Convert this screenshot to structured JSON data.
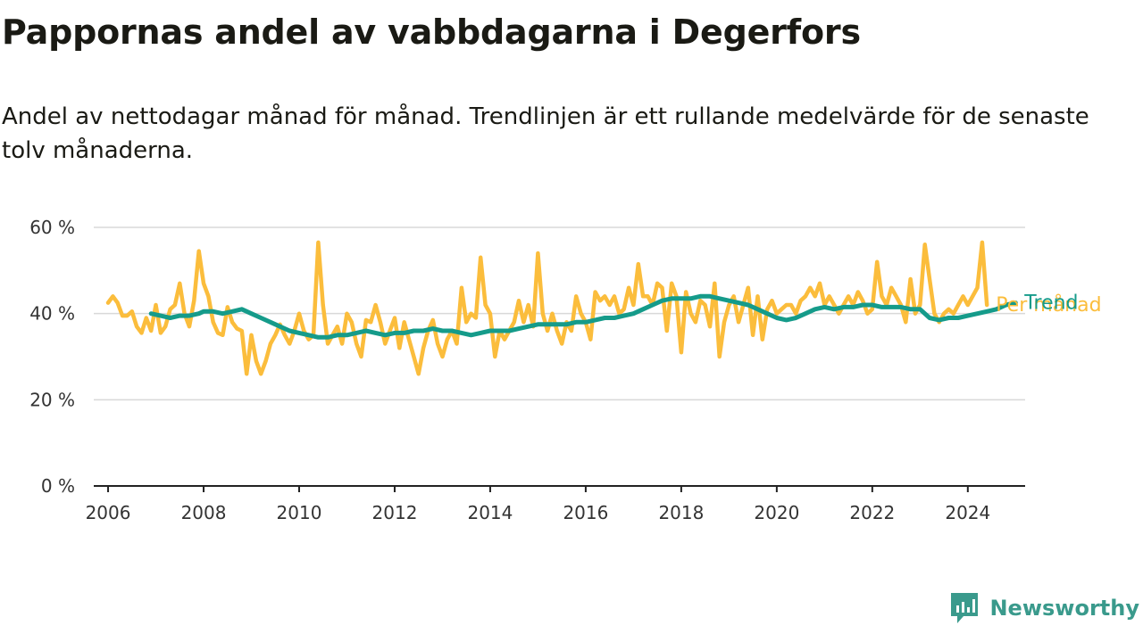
{
  "title": "Pappornas andel av vabbdagarna i Degerfors",
  "subtitle": "Andel av nettodagar månad för månad. Trendlinjen är ett rullande medelvärde för de senaste tolv månaderna.",
  "brand": {
    "name": "Newsworthy",
    "icon": "newsworthy-logo-icon",
    "color": "#3a9a8c"
  },
  "chart_data": {
    "type": "line",
    "ylim": [
      0,
      60
    ],
    "yticks": [
      "0 %",
      "20 %",
      "40 %",
      "60 %"
    ],
    "ytick_values": [
      0,
      20,
      40,
      60
    ],
    "xlim": [
      2005.7,
      2025.2
    ],
    "xticks": [
      "2006",
      "2008",
      "2010",
      "2012",
      "2014",
      "2016",
      "2018",
      "2020",
      "2022",
      "2024"
    ],
    "xtick_values": [
      2006,
      2008,
      2010,
      2012,
      2014,
      2016,
      2018,
      2020,
      2022,
      2024
    ],
    "grid": true,
    "series": [
      {
        "name": "Per månad",
        "color": "#fbbd3c",
        "points": [
          [
            2006.0,
            42.5
          ],
          [
            2006.1,
            44
          ],
          [
            2006.2,
            42.5
          ],
          [
            2006.3,
            39.5
          ],
          [
            2006.4,
            39.5
          ],
          [
            2006.5,
            40.5
          ],
          [
            2006.6,
            37
          ],
          [
            2006.7,
            35.5
          ],
          [
            2006.8,
            39
          ],
          [
            2006.9,
            36
          ],
          [
            2007.0,
            42
          ],
          [
            2007.1,
            35.5
          ],
          [
            2007.2,
            37
          ],
          [
            2007.3,
            41
          ],
          [
            2007.4,
            42
          ],
          [
            2007.5,
            47
          ],
          [
            2007.6,
            40
          ],
          [
            2007.7,
            37
          ],
          [
            2007.8,
            43
          ],
          [
            2007.9,
            54.5
          ],
          [
            2008.0,
            47
          ],
          [
            2008.1,
            44
          ],
          [
            2008.2,
            38
          ],
          [
            2008.3,
            35.5
          ],
          [
            2008.4,
            35
          ],
          [
            2008.5,
            41.5
          ],
          [
            2008.6,
            38
          ],
          [
            2008.7,
            36.5
          ],
          [
            2008.8,
            36
          ],
          [
            2008.9,
            26
          ],
          [
            2009.0,
            35
          ],
          [
            2009.1,
            29
          ],
          [
            2009.2,
            26
          ],
          [
            2009.3,
            29
          ],
          [
            2009.4,
            33
          ],
          [
            2009.5,
            35
          ],
          [
            2009.6,
            37.5
          ],
          [
            2009.7,
            35
          ],
          [
            2009.8,
            33
          ],
          [
            2009.9,
            36
          ],
          [
            2010.0,
            40
          ],
          [
            2010.1,
            36
          ],
          [
            2010.2,
            34
          ],
          [
            2010.3,
            35
          ],
          [
            2010.4,
            56.5
          ],
          [
            2010.5,
            42
          ],
          [
            2010.6,
            33
          ],
          [
            2010.7,
            35
          ],
          [
            2010.8,
            37
          ],
          [
            2010.9,
            33
          ],
          [
            2011.0,
            40
          ],
          [
            2011.1,
            38
          ],
          [
            2011.2,
            33
          ],
          [
            2011.3,
            30
          ],
          [
            2011.4,
            38.5
          ],
          [
            2011.5,
            38
          ],
          [
            2011.6,
            42
          ],
          [
            2011.7,
            38
          ],
          [
            2011.8,
            33
          ],
          [
            2011.9,
            36
          ],
          [
            2012.0,
            39
          ],
          [
            2012.1,
            32
          ],
          [
            2012.2,
            38
          ],
          [
            2012.3,
            34
          ],
          [
            2012.4,
            30
          ],
          [
            2012.5,
            26
          ],
          [
            2012.6,
            32
          ],
          [
            2012.7,
            36
          ],
          [
            2012.8,
            38.5
          ],
          [
            2012.9,
            33
          ],
          [
            2013.0,
            30
          ],
          [
            2013.1,
            34
          ],
          [
            2013.2,
            36
          ],
          [
            2013.3,
            33
          ],
          [
            2013.4,
            46
          ],
          [
            2013.5,
            38
          ],
          [
            2013.6,
            40
          ],
          [
            2013.7,
            39
          ],
          [
            2013.8,
            53
          ],
          [
            2013.9,
            42
          ],
          [
            2014.0,
            40
          ],
          [
            2014.1,
            30
          ],
          [
            2014.2,
            36
          ],
          [
            2014.3,
            34
          ],
          [
            2014.4,
            36
          ],
          [
            2014.5,
            38
          ],
          [
            2014.6,
            43
          ],
          [
            2014.7,
            38
          ],
          [
            2014.8,
            42
          ],
          [
            2014.9,
            37
          ],
          [
            2015.0,
            54
          ],
          [
            2015.1,
            40
          ],
          [
            2015.2,
            36
          ],
          [
            2015.3,
            40
          ],
          [
            2015.4,
            36
          ],
          [
            2015.5,
            33
          ],
          [
            2015.6,
            38
          ],
          [
            2015.7,
            36
          ],
          [
            2015.8,
            44
          ],
          [
            2015.9,
            40
          ],
          [
            2016.0,
            38
          ],
          [
            2016.1,
            34
          ],
          [
            2016.2,
            45
          ],
          [
            2016.3,
            43
          ],
          [
            2016.4,
            44
          ],
          [
            2016.5,
            42
          ],
          [
            2016.6,
            44
          ],
          [
            2016.7,
            40
          ],
          [
            2016.8,
            41
          ],
          [
            2016.9,
            46
          ],
          [
            2017.0,
            42
          ],
          [
            2017.1,
            51.5
          ],
          [
            2017.2,
            44
          ],
          [
            2017.3,
            44
          ],
          [
            2017.4,
            42
          ],
          [
            2017.5,
            47
          ],
          [
            2017.6,
            46
          ],
          [
            2017.7,
            36
          ],
          [
            2017.8,
            47
          ],
          [
            2017.9,
            44
          ],
          [
            2018.0,
            31
          ],
          [
            2018.1,
            45
          ],
          [
            2018.2,
            40
          ],
          [
            2018.3,
            38
          ],
          [
            2018.4,
            43
          ],
          [
            2018.5,
            42
          ],
          [
            2018.6,
            37
          ],
          [
            2018.7,
            47
          ],
          [
            2018.8,
            30
          ],
          [
            2018.9,
            38
          ],
          [
            2019.0,
            42
          ],
          [
            2019.1,
            44
          ],
          [
            2019.2,
            38
          ],
          [
            2019.3,
            42
          ],
          [
            2019.4,
            46
          ],
          [
            2019.5,
            35
          ],
          [
            2019.6,
            44
          ],
          [
            2019.7,
            34
          ],
          [
            2019.8,
            41
          ],
          [
            2019.9,
            43
          ],
          [
            2020.0,
            40
          ],
          [
            2020.1,
            41
          ],
          [
            2020.2,
            42
          ],
          [
            2020.3,
            42
          ],
          [
            2020.4,
            40
          ],
          [
            2020.5,
            43
          ],
          [
            2020.6,
            44
          ],
          [
            2020.7,
            46
          ],
          [
            2020.8,
            44
          ],
          [
            2020.9,
            47
          ],
          [
            2021.0,
            42
          ],
          [
            2021.1,
            44
          ],
          [
            2021.2,
            42
          ],
          [
            2021.3,
            40
          ],
          [
            2021.4,
            42
          ],
          [
            2021.5,
            44
          ],
          [
            2021.6,
            42
          ],
          [
            2021.7,
            45
          ],
          [
            2021.8,
            43
          ],
          [
            2021.9,
            40
          ],
          [
            2022.0,
            41
          ],
          [
            2022.1,
            52
          ],
          [
            2022.2,
            44
          ],
          [
            2022.3,
            42
          ],
          [
            2022.4,
            46
          ],
          [
            2022.5,
            44
          ],
          [
            2022.6,
            42
          ],
          [
            2022.7,
            38
          ],
          [
            2022.8,
            48
          ],
          [
            2022.9,
            40
          ],
          [
            2023.0,
            42
          ],
          [
            2023.1,
            56
          ],
          [
            2023.2,
            48
          ],
          [
            2023.3,
            40
          ],
          [
            2023.4,
            38
          ],
          [
            2023.5,
            40
          ],
          [
            2023.6,
            41
          ],
          [
            2023.7,
            40
          ],
          [
            2023.8,
            42
          ],
          [
            2023.9,
            44
          ],
          [
            2024.0,
            42
          ],
          [
            2024.1,
            44
          ],
          [
            2024.2,
            46
          ],
          [
            2024.3,
            56.5
          ],
          [
            2024.4,
            42
          ]
        ]
      },
      {
        "name": "Trend",
        "color": "#159b8a",
        "points": [
          [
            2006.9,
            40
          ],
          [
            2007.1,
            39.5
          ],
          [
            2007.3,
            39
          ],
          [
            2007.5,
            39.5
          ],
          [
            2007.7,
            39.5
          ],
          [
            2007.9,
            40
          ],
          [
            2008.0,
            40.5
          ],
          [
            2008.2,
            40.5
          ],
          [
            2008.4,
            40
          ],
          [
            2008.6,
            40.5
          ],
          [
            2008.8,
            41
          ],
          [
            2009.0,
            40
          ],
          [
            2009.2,
            39
          ],
          [
            2009.4,
            38
          ],
          [
            2009.6,
            37
          ],
          [
            2009.8,
            36
          ],
          [
            2010.0,
            35.5
          ],
          [
            2010.2,
            35
          ],
          [
            2010.4,
            34.5
          ],
          [
            2010.6,
            34.5
          ],
          [
            2010.8,
            35
          ],
          [
            2011.0,
            35
          ],
          [
            2011.2,
            35.5
          ],
          [
            2011.4,
            36
          ],
          [
            2011.6,
            35.5
          ],
          [
            2011.8,
            35
          ],
          [
            2012.0,
            35.5
          ],
          [
            2012.2,
            35.5
          ],
          [
            2012.4,
            36
          ],
          [
            2012.6,
            36
          ],
          [
            2012.8,
            36.5
          ],
          [
            2013.0,
            36
          ],
          [
            2013.2,
            36
          ],
          [
            2013.4,
            35.5
          ],
          [
            2013.6,
            35
          ],
          [
            2013.8,
            35.5
          ],
          [
            2014.0,
            36
          ],
          [
            2014.2,
            36
          ],
          [
            2014.4,
            36
          ],
          [
            2014.6,
            36.5
          ],
          [
            2014.8,
            37
          ],
          [
            2015.0,
            37.5
          ],
          [
            2015.2,
            37.5
          ],
          [
            2015.4,
            37.5
          ],
          [
            2015.6,
            37.5
          ],
          [
            2015.8,
            38
          ],
          [
            2016.0,
            38
          ],
          [
            2016.2,
            38.5
          ],
          [
            2016.4,
            39
          ],
          [
            2016.6,
            39
          ],
          [
            2016.8,
            39.5
          ],
          [
            2017.0,
            40
          ],
          [
            2017.2,
            41
          ],
          [
            2017.4,
            42
          ],
          [
            2017.6,
            43
          ],
          [
            2017.8,
            43.5
          ],
          [
            2018.0,
            43.5
          ],
          [
            2018.2,
            43.5
          ],
          [
            2018.4,
            44
          ],
          [
            2018.6,
            44
          ],
          [
            2018.8,
            43.5
          ],
          [
            2019.0,
            43
          ],
          [
            2019.2,
            42.5
          ],
          [
            2019.4,
            42
          ],
          [
            2019.6,
            41
          ],
          [
            2019.8,
            40
          ],
          [
            2020.0,
            39
          ],
          [
            2020.2,
            38.5
          ],
          [
            2020.4,
            39
          ],
          [
            2020.6,
            40
          ],
          [
            2020.8,
            41
          ],
          [
            2021.0,
            41.5
          ],
          [
            2021.2,
            41
          ],
          [
            2021.4,
            41.5
          ],
          [
            2021.6,
            41.5
          ],
          [
            2021.8,
            42
          ],
          [
            2022.0,
            42
          ],
          [
            2022.2,
            41.5
          ],
          [
            2022.4,
            41.5
          ],
          [
            2022.6,
            41.5
          ],
          [
            2022.8,
            41
          ],
          [
            2023.0,
            41
          ],
          [
            2023.2,
            39
          ],
          [
            2023.4,
            38.5
          ],
          [
            2023.6,
            39
          ],
          [
            2023.8,
            39
          ],
          [
            2024.0,
            39.5
          ],
          [
            2024.2,
            40
          ],
          [
            2024.4,
            40.5
          ],
          [
            2024.6,
            41
          ],
          [
            2024.8,
            42
          ],
          [
            2025.0,
            42.5
          ]
        ]
      }
    ]
  }
}
